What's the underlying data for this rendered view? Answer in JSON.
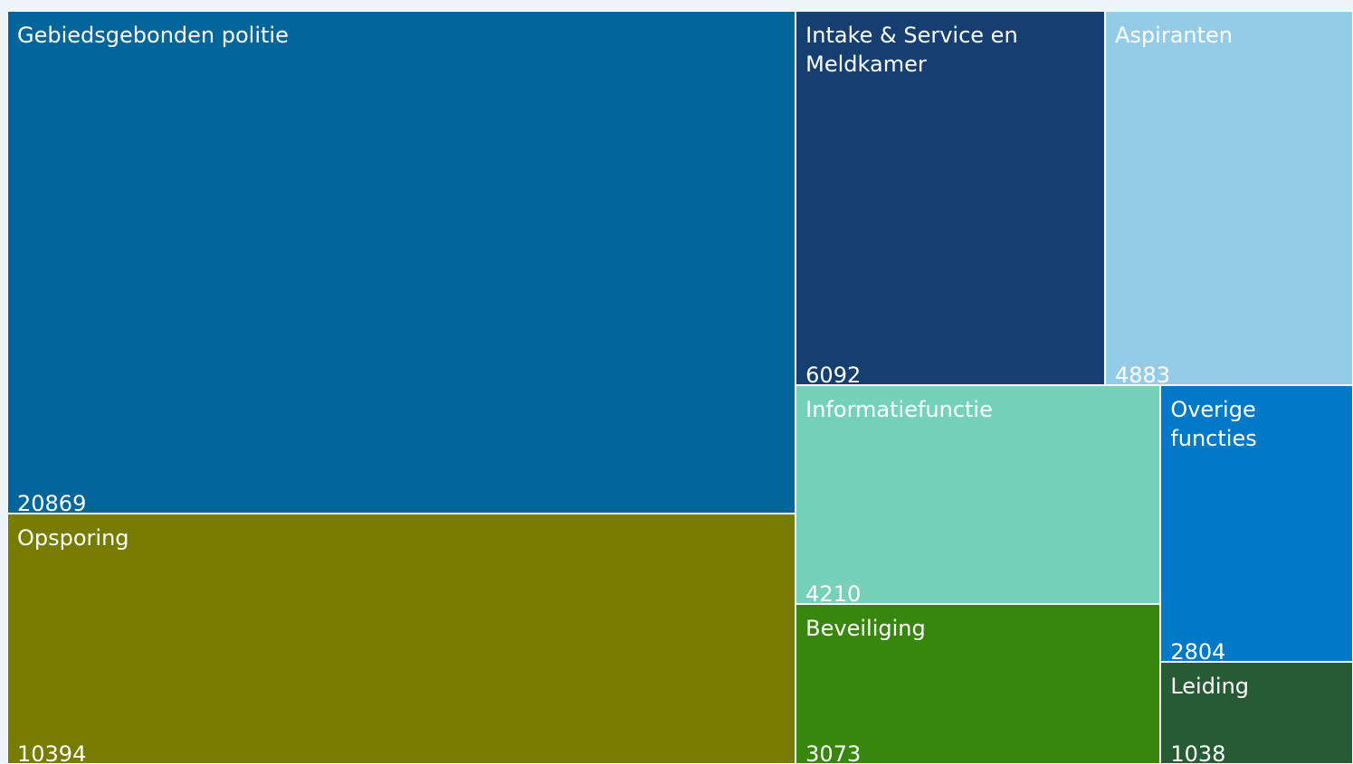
{
  "chart_data": {
    "type": "treemap",
    "categories": [
      "Gebiedsgebonden politie",
      "Opsporing",
      "Intake & Service en Meldkamer",
      "Aspiranten",
      "Informatiefunctie",
      "Beveiliging",
      "Overige functies",
      "Leiding"
    ],
    "values": [
      20869,
      10394,
      6092,
      4883,
      4210,
      3073,
      2804,
      1038
    ],
    "colors": [
      "#006699",
      "#777b00",
      "#163f71",
      "#94cbe6",
      "#76d1b8",
      "#38860e",
      "#0079c6",
      "#275b33"
    ]
  }
}
